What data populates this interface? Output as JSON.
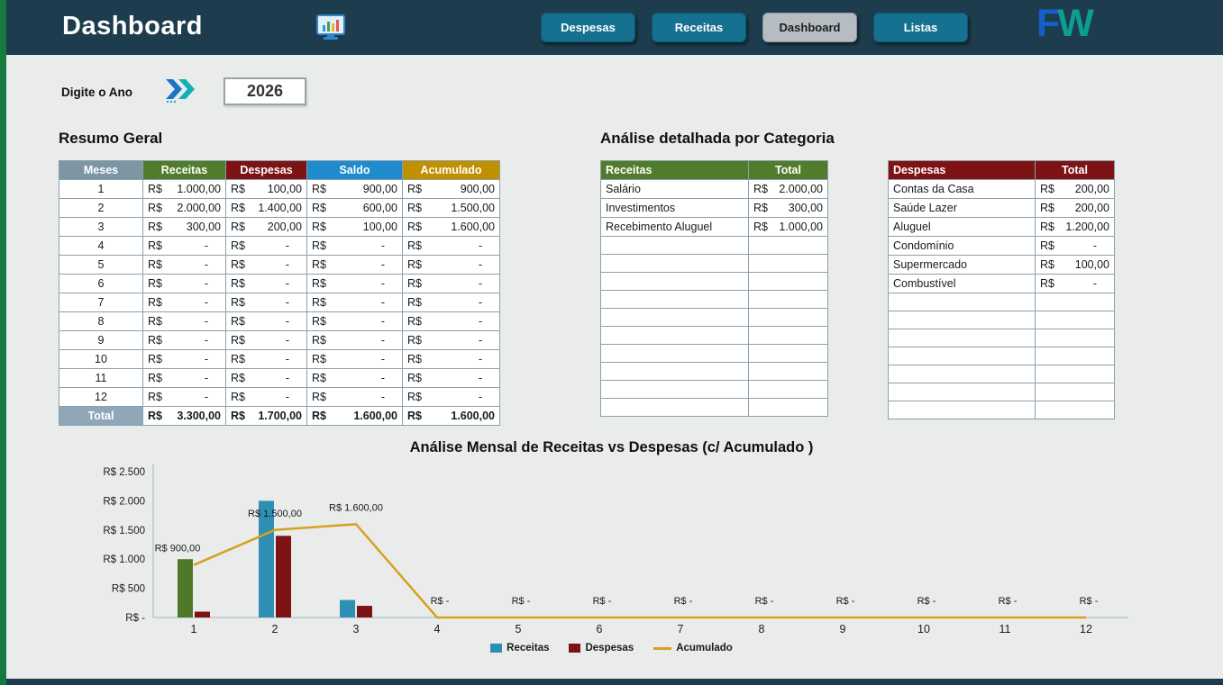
{
  "header": {
    "title": "Dashboard",
    "nav": [
      {
        "label": "Despesas",
        "active": false
      },
      {
        "label": "Receitas",
        "active": false
      },
      {
        "label": "Dashboard",
        "active": true
      },
      {
        "label": "Listas",
        "active": false
      }
    ],
    "logo": {
      "f": "F",
      "w": "W"
    }
  },
  "year": {
    "label": "Digite o Ano",
    "value": "2026"
  },
  "resumo": {
    "title": "Resumo Geral",
    "currency": "R$",
    "columns": [
      "Meses",
      "Receitas",
      "Despesas",
      "Saldo",
      "Acumulado"
    ],
    "rows": [
      {
        "mes": "1",
        "receitas": "1.000,00",
        "despesas": "100,00",
        "saldo": "900,00",
        "acumulado": "900,00"
      },
      {
        "mes": "2",
        "receitas": "2.000,00",
        "despesas": "1.400,00",
        "saldo": "600,00",
        "acumulado": "1.500,00"
      },
      {
        "mes": "3",
        "receitas": "300,00",
        "despesas": "200,00",
        "saldo": "100,00",
        "acumulado": "1.600,00"
      },
      {
        "mes": "4",
        "receitas": "-",
        "despesas": "-",
        "saldo": "-",
        "acumulado": "-"
      },
      {
        "mes": "5",
        "receitas": "-",
        "despesas": "-",
        "saldo": "-",
        "acumulado": "-"
      },
      {
        "mes": "6",
        "receitas": "-",
        "despesas": "-",
        "saldo": "-",
        "acumulado": "-"
      },
      {
        "mes": "7",
        "receitas": "-",
        "despesas": "-",
        "saldo": "-",
        "acumulado": "-"
      },
      {
        "mes": "8",
        "receitas": "-",
        "despesas": "-",
        "saldo": "-",
        "acumulado": "-"
      },
      {
        "mes": "9",
        "receitas": "-",
        "despesas": "-",
        "saldo": "-",
        "acumulado": "-"
      },
      {
        "mes": "10",
        "receitas": "-",
        "despesas": "-",
        "saldo": "-",
        "acumulado": "-"
      },
      {
        "mes": "11",
        "receitas": "-",
        "despesas": "-",
        "saldo": "-",
        "acumulado": "-"
      },
      {
        "mes": "12",
        "receitas": "-",
        "despesas": "-",
        "saldo": "-",
        "acumulado": "-"
      }
    ],
    "total_row": {
      "label": "Total",
      "receitas": "3.300,00",
      "despesas": "1.700,00",
      "saldo": "1.600,00",
      "acumulado": "1.600,00"
    }
  },
  "categorias": {
    "title": "Análise detalhada por Categoria",
    "receitas": {
      "header": "Receitas",
      "total_header": "Total",
      "rows": [
        {
          "name": "Salário",
          "value": "2.000,00"
        },
        {
          "name": "Investimentos",
          "value": "300,00"
        },
        {
          "name": "Recebimento Aluguel",
          "value": "1.000,00"
        }
      ],
      "empty_rows": 10
    },
    "despesas": {
      "header": "Despesas",
      "total_header": "Total",
      "rows": [
        {
          "name": "Contas da Casa",
          "value": "200,00"
        },
        {
          "name": "Saúde Lazer",
          "value": "200,00"
        },
        {
          "name": "Aluguel",
          "value": "1.200,00"
        },
        {
          "name": "Condomínio",
          "value": "-"
        },
        {
          "name": "Supermercado",
          "value": "100,00"
        },
        {
          "name": "Combustível",
          "value": "-"
        }
      ],
      "empty_rows": 7
    }
  },
  "chart_data": {
    "type": "combo",
    "title": "Análise Mensal de Receitas  vs Despesas (c/ Acumulado )",
    "categories": [
      "1",
      "2",
      "3",
      "4",
      "5",
      "6",
      "7",
      "8",
      "9",
      "10",
      "11",
      "12"
    ],
    "series": [
      {
        "name": "Receitas",
        "type": "bar",
        "color": "#2e8fb5",
        "point_colors": {
          "0": "#4e7a28"
        },
        "values": [
          1000,
          2000,
          300,
          0,
          0,
          0,
          0,
          0,
          0,
          0,
          0,
          0
        ]
      },
      {
        "name": "Despesas",
        "type": "bar",
        "color": "#7e1315",
        "values": [
          100,
          1400,
          200,
          0,
          0,
          0,
          0,
          0,
          0,
          0,
          0,
          0
        ]
      },
      {
        "name": "Acumulado",
        "type": "line",
        "color": "#d6a121",
        "values": [
          900,
          1500,
          1600,
          0,
          0,
          0,
          0,
          0,
          0,
          0,
          0,
          0
        ],
        "labels": [
          "R$ 900,00",
          "R$ 1.500,00",
          "R$ 1.600,00",
          "R$ -",
          "R$ -",
          "R$ -",
          "R$ -",
          "R$ -",
          "R$ -",
          "R$ -",
          "R$ -",
          "R$ -"
        ]
      }
    ],
    "ylim": [
      0,
      2500
    ],
    "ytick_labels": [
      "R$ -",
      "R$ 500",
      "R$ 1.000",
      "R$ 1.500",
      "R$ 2.000",
      "R$ 2.500"
    ],
    "legend": [
      "Receitas",
      "Despesas",
      "Acumulado"
    ],
    "legend_position": "bottom",
    "grid": false
  },
  "colors": {
    "header_bar": "#1d3c4d",
    "accent_strip": "#157a3d",
    "nav_button": "#15718f",
    "nav_button_active": "#b5bcc2",
    "meses_header": "#7e96a4",
    "receitas_header": "#507c2b",
    "despesas_header": "#7e1315",
    "saldo_header": "#1f8bcc",
    "acumulado_header": "#bf9000",
    "total_cell": "#90a7b9",
    "logo_f": "#1460c8",
    "logo_w": "#0b9e92"
  }
}
